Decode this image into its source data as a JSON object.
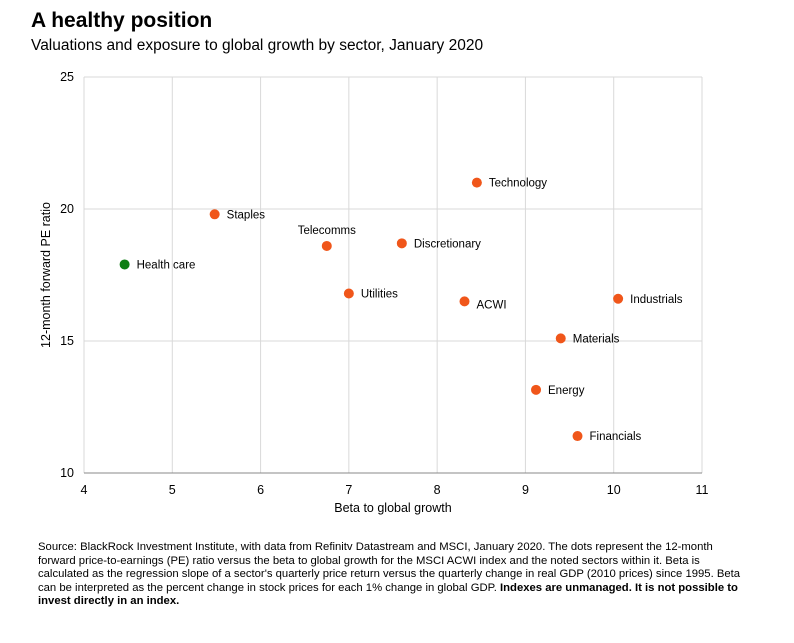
{
  "title": "A healthy position",
  "subtitle": "Valuations and exposure to global growth by sector, January 2020",
  "footnote": {
    "text": "Source: BlackRock Investment Institute, with data from Refinitv Datastream and MSCI, January 2020. The dots represent the 12-month forward price-to-earnings (PE) ratio versus the beta to global growth for the MSCI ACWI index and the noted sectors within it. Beta is calculated as the regression slope of a sector's quarterly price return versus the quarterly change in real GDP (2010 prices) since 1995. Beta can be interpreted as the percent change in stock prices for each 1% change in global GDP.",
    "bold": "Indexes are unmanaged. It is not possible to invest directly in an index."
  },
  "colors": {
    "sector": "#F0561A",
    "highlight": "#0E7E13",
    "grid": "#D9D9D9"
  },
  "chart_data": {
    "type": "scatter",
    "xlabel": "Beta to global growth",
    "ylabel": "12-month forward PE ratio",
    "xlim": [
      4,
      11
    ],
    "ylim": [
      10,
      25
    ],
    "xticks": [
      4,
      5,
      6,
      7,
      8,
      9,
      10,
      11
    ],
    "yticks": [
      10,
      15,
      20,
      25
    ],
    "grid": true,
    "points": [
      {
        "label": "Health care",
        "x": 4.46,
        "y": 17.9,
        "color": "#0E7E13"
      },
      {
        "label": "Staples",
        "x": 5.48,
        "y": 19.8,
        "color": "#F0561A"
      },
      {
        "label": "Telecomms",
        "x": 6.75,
        "y": 18.6,
        "color": "#F0561A",
        "label_pos": "above"
      },
      {
        "label": "Discretionary",
        "x": 7.6,
        "y": 18.7,
        "color": "#F0561A"
      },
      {
        "label": "Utilities",
        "x": 7.0,
        "y": 16.8,
        "color": "#F0561A"
      },
      {
        "label": "Technology",
        "x": 8.45,
        "y": 21.0,
        "color": "#F0561A"
      },
      {
        "label": "ACWI",
        "x": 8.31,
        "y": 16.5,
        "color": "#F0561A"
      },
      {
        "label": "Industrials",
        "x": 10.05,
        "y": 16.6,
        "color": "#F0561A"
      },
      {
        "label": "Materials",
        "x": 9.4,
        "y": 15.1,
        "color": "#F0561A"
      },
      {
        "label": "Energy",
        "x": 9.12,
        "y": 13.15,
        "color": "#F0561A"
      },
      {
        "label": "Financials",
        "x": 9.59,
        "y": 11.4,
        "color": "#F0561A"
      }
    ]
  }
}
